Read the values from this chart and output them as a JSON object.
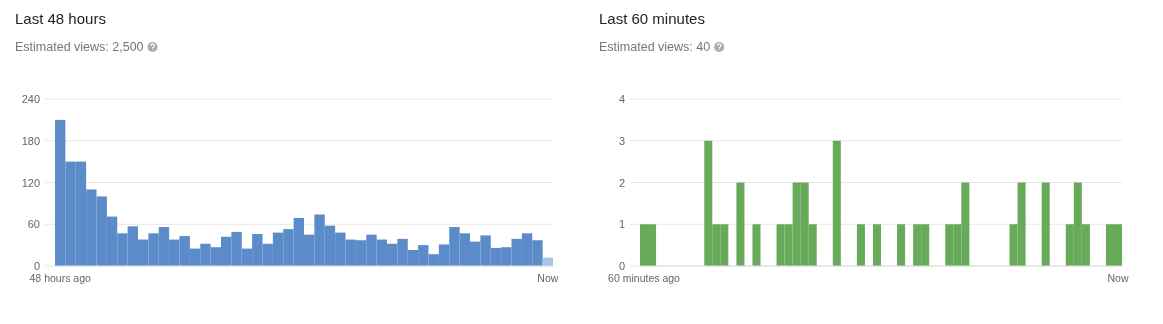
{
  "chart_data": [
    {
      "type": "bar",
      "title": "Last 48 hours",
      "subtitle": "Estimated views: 2,500",
      "categories": [
        "48 hours ago",
        null,
        null,
        null,
        null,
        null,
        null,
        null,
        null,
        null,
        null,
        null,
        null,
        null,
        null,
        null,
        null,
        null,
        null,
        null,
        null,
        null,
        null,
        null,
        null,
        null,
        null,
        null,
        null,
        null,
        null,
        null,
        null,
        null,
        null,
        null,
        null,
        null,
        null,
        null,
        null,
        null,
        null,
        null,
        null,
        null,
        null,
        "Now"
      ],
      "values": [
        210,
        150,
        150,
        110,
        100,
        71,
        47,
        57,
        38,
        47,
        56,
        38,
        43,
        25,
        32,
        27,
        42,
        49,
        25,
        46,
        32,
        48,
        53,
        69,
        45,
        74,
        58,
        48,
        38,
        37,
        45,
        38,
        32,
        39,
        23,
        30,
        17,
        31,
        56,
        47,
        35,
        44,
        26,
        27,
        39,
        47,
        37,
        12
      ],
      "colors": [
        "#5b8bc8",
        "#5b8bc8",
        "#5b8bc8",
        "#5b8bc8",
        "#5b8bc8",
        "#5b8bc8",
        "#5b8bc8",
        "#5b8bc8",
        "#5b8bc8",
        "#5b8bc8",
        "#5b8bc8",
        "#5b8bc8",
        "#5b8bc8",
        "#5b8bc8",
        "#5b8bc8",
        "#5b8bc8",
        "#5b8bc8",
        "#5b8bc8",
        "#5b8bc8",
        "#5b8bc8",
        "#5b8bc8",
        "#5b8bc8",
        "#5b8bc8",
        "#5b8bc8",
        "#5b8bc8",
        "#5b8bc8",
        "#5b8bc8",
        "#5b8bc8",
        "#5b8bc8",
        "#5b8bc8",
        "#5b8bc8",
        "#5b8bc8",
        "#5b8bc8",
        "#5b8bc8",
        "#5b8bc8",
        "#5b8bc8",
        "#5b8bc8",
        "#5b8bc8",
        "#5b8bc8",
        "#5b8bc8",
        "#5b8bc8",
        "#5b8bc8",
        "#5b8bc8",
        "#5b8bc8",
        "#5b8bc8",
        "#5b8bc8",
        "#5b8bc8",
        "#a9c3e5"
      ],
      "ylim": [
        0,
        240
      ],
      "yticks": [
        0,
        60,
        120,
        180,
        240
      ],
      "grid": "y"
    },
    {
      "type": "bar",
      "title": "Last 60 minutes",
      "subtitle": "Estimated views: 40",
      "categories": [
        "60 minutes ago",
        null,
        null,
        null,
        null,
        null,
        null,
        null,
        null,
        null,
        null,
        null,
        null,
        null,
        null,
        null,
        null,
        null,
        null,
        null,
        null,
        null,
        null,
        null,
        null,
        null,
        null,
        null,
        null,
        null,
        null,
        null,
        null,
        null,
        null,
        null,
        null,
        null,
        null,
        null,
        null,
        null,
        null,
        null,
        null,
        null,
        null,
        null,
        null,
        null,
        null,
        null,
        null,
        null,
        null,
        null,
        null,
        null,
        null,
        "Now"
      ],
      "values": [
        1,
        1,
        0,
        0,
        0,
        0,
        0,
        0,
        3,
        1,
        1,
        0,
        2,
        0,
        1,
        0,
        0,
        1,
        1,
        2,
        2,
        1,
        0,
        0,
        3,
        0,
        0,
        1,
        0,
        1,
        0,
        0,
        1,
        0,
        1,
        1,
        0,
        0,
        1,
        1,
        2,
        0,
        0,
        0,
        0,
        0,
        1,
        2,
        0,
        0,
        2,
        0,
        0,
        1,
        2,
        1,
        0,
        0,
        1,
        1
      ],
      "color": "#67aa5a",
      "ylim": [
        0,
        4
      ],
      "yticks": [
        0,
        1,
        2,
        3,
        4
      ],
      "grid": "y"
    }
  ]
}
